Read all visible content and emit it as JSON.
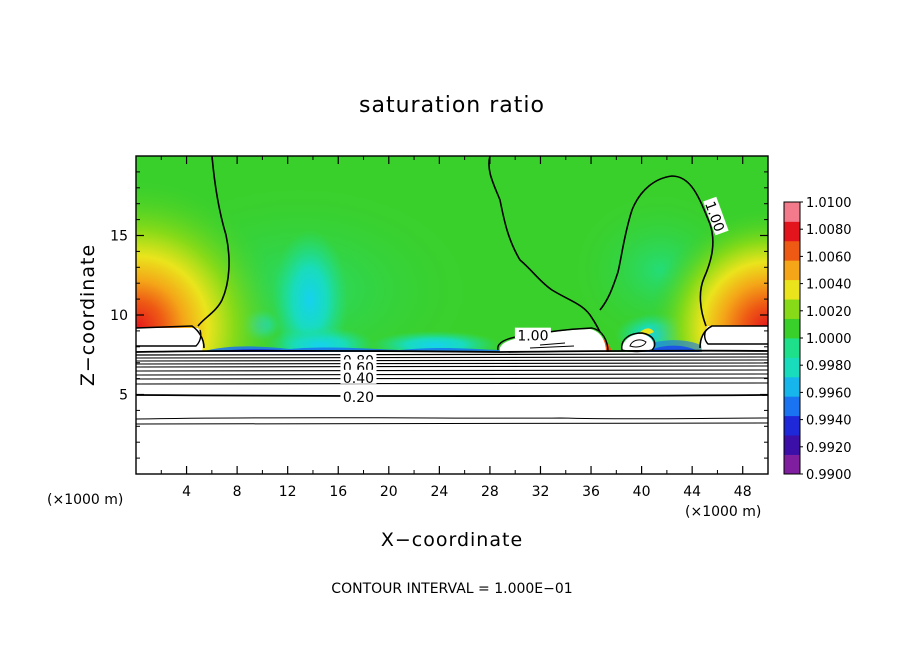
{
  "chart_data": {
    "type": "heatmap",
    "title": "saturation ratio",
    "xlabel": "X−coordinate",
    "ylabel": "Z−coordinate",
    "x_unit_left": "(×1000 m)",
    "x_unit_right": "(×1000 m)",
    "xlim": [
      0,
      50
    ],
    "ylim": [
      0,
      20
    ],
    "x_ticks": [
      4,
      8,
      12,
      16,
      20,
      24,
      28,
      32,
      36,
      40,
      44,
      48
    ],
    "y_ticks": [
      5,
      10,
      15
    ],
    "colorbar": {
      "min": 0.99,
      "max": 1.01,
      "ticks": [
        "1.0100",
        "1.0080",
        "1.0060",
        "1.0040",
        "1.0020",
        "1.0000",
        "0.9980",
        "0.9960",
        "0.9940",
        "0.9920",
        "0.9900"
      ],
      "colors": [
        "#7f1fa0",
        "#3c10a8",
        "#1e28d8",
        "#1a73f0",
        "#16b6ec",
        "#18dcbc",
        "#1ee08a",
        "#3ad02c",
        "#86da18",
        "#eae41c",
        "#f4a618",
        "#ee5a14",
        "#e4141c",
        "#f27a8a"
      ]
    },
    "contour_labels": [
      {
        "text": "1.00",
        "x": 45.8,
        "y": 16.2,
        "angle": 70
      },
      {
        "text": "1.00",
        "x": 31.4,
        "y": 8.7,
        "angle": 0
      },
      {
        "text": "0.80",
        "x": 17.6,
        "y": 7.15,
        "angle": 0
      },
      {
        "text": "0.60",
        "x": 17.6,
        "y": 6.7,
        "angle": 0
      },
      {
        "text": "0.40",
        "x": 17.6,
        "y": 6.05,
        "angle": 0
      },
      {
        "text": "0.20",
        "x": 17.6,
        "y": 4.85,
        "angle": 0
      }
    ],
    "footer": "CONTOUR INTERVAL = 1.000E−01"
  }
}
